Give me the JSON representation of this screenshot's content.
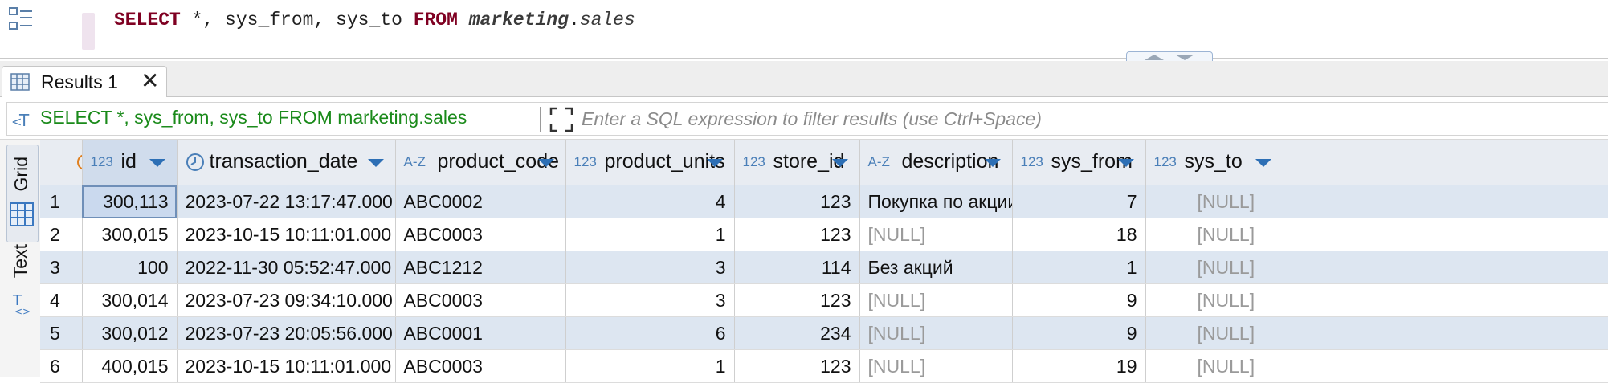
{
  "editor": {
    "sql": {
      "kw_select": "SELECT",
      "cols": " *, sys_from, sys_to ",
      "kw_from": "FROM",
      "schema": "marketing",
      "dot": ".",
      "table": "sales"
    }
  },
  "tabs": [
    {
      "label": "Results 1",
      "close": "✕"
    }
  ],
  "filter": {
    "query": "SELECT *, sys_from, sys_to FROM marketing.sales",
    "placeholder": "Enter a SQL expression to filter results (use Ctrl+Space)"
  },
  "side_tabs": {
    "grid": "Grid",
    "text": "Text"
  },
  "grid": {
    "columns": [
      {
        "type": "123",
        "name": "id"
      },
      {
        "type": "clock",
        "name": "transaction_date"
      },
      {
        "type": "A-Z",
        "name": "product_code"
      },
      {
        "type": "123",
        "name": "product_units"
      },
      {
        "type": "123",
        "name": "store_id"
      },
      {
        "type": "A-Z",
        "name": "description"
      },
      {
        "type": "123",
        "name": "sys_from"
      },
      {
        "type": "123",
        "name": "sys_to"
      }
    ],
    "rows": [
      {
        "n": "1",
        "id": "300,113",
        "transaction_date": "2023-07-22 13:17:47.000",
        "product_code": "ABC0002",
        "product_units": "4",
        "store_id": "123",
        "description": "Покупка по акции",
        "sys_from": "7",
        "sys_to": "[NULL]"
      },
      {
        "n": "2",
        "id": "300,015",
        "transaction_date": "2023-10-15 10:11:01.000",
        "product_code": "ABC0003",
        "product_units": "1",
        "store_id": "123",
        "description": "[NULL]",
        "sys_from": "18",
        "sys_to": "[NULL]"
      },
      {
        "n": "3",
        "id": "100",
        "transaction_date": "2022-11-30 05:52:47.000",
        "product_code": "ABC1212",
        "product_units": "3",
        "store_id": "114",
        "description": "Без акций",
        "sys_from": "1",
        "sys_to": "[NULL]"
      },
      {
        "n": "4",
        "id": "300,014",
        "transaction_date": "2023-07-23 09:34:10.000",
        "product_code": "ABC0003",
        "product_units": "3",
        "store_id": "123",
        "description": "[NULL]",
        "sys_from": "9",
        "sys_to": "[NULL]"
      },
      {
        "n": "5",
        "id": "300,012",
        "transaction_date": "2023-07-23 20:05:56.000",
        "product_code": "ABC0001",
        "product_units": "6",
        "store_id": "234",
        "description": "[NULL]",
        "sys_from": "9",
        "sys_to": "[NULL]"
      },
      {
        "n": "6",
        "id": "400,015",
        "transaction_date": "2023-10-15 10:11:01.000",
        "product_code": "ABC0003",
        "product_units": "1",
        "store_id": "123",
        "description": "[NULL]",
        "sys_from": "19",
        "sys_to": "[NULL]"
      }
    ]
  },
  "colors": {
    "keyword": "#7f0022",
    "filter_sql": "#1a8a1a",
    "type_icon": "#4a7fb8",
    "row_alt": "#dde6f1",
    "null_text": "#9a9a9a"
  },
  "icons": {
    "editor_side": "outline-icon",
    "tab": "results-grid-icon",
    "filter": "sql-filter-icon",
    "expand": "expand-icon",
    "sort": "sort-arrow-icon"
  }
}
